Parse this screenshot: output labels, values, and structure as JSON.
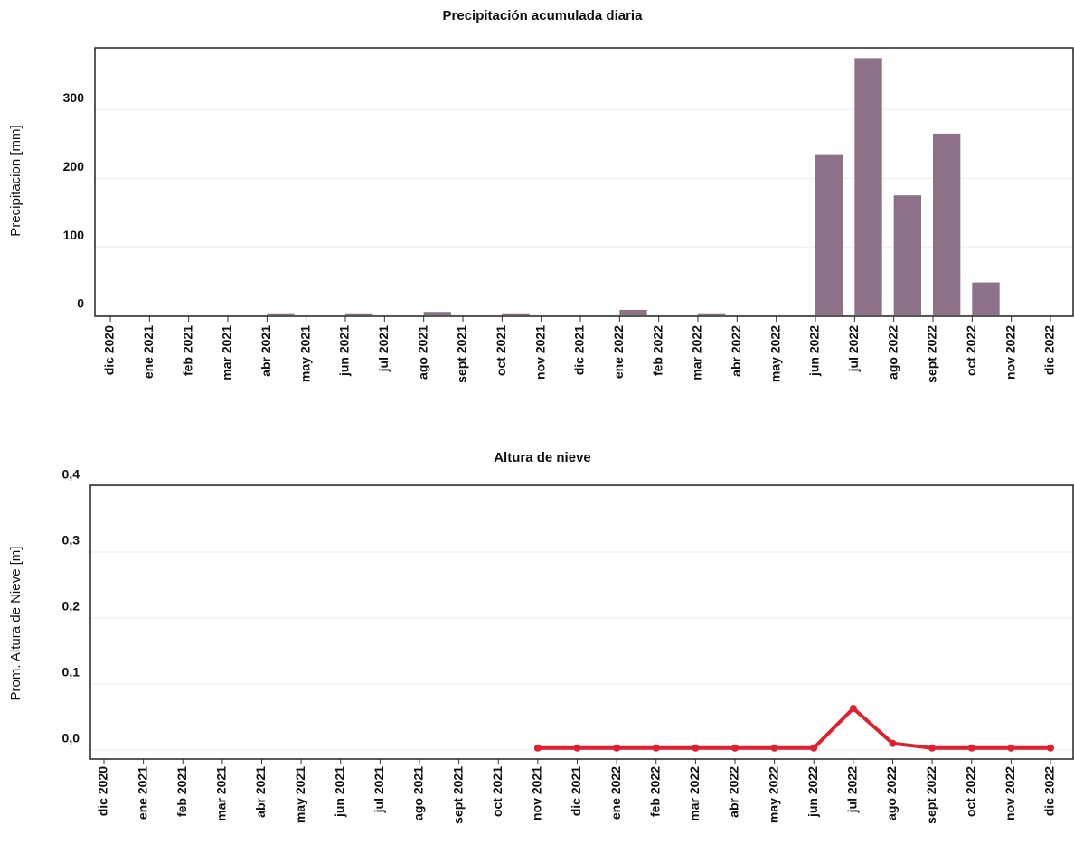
{
  "chart_data": [
    {
      "type": "bar",
      "title": "Precipitación acumulada diaria",
      "y_label": "Precipitacion [mm]",
      "color": "#8c7189",
      "grid": true,
      "ylim": [
        0,
        390
      ],
      "yticks": [
        0,
        100,
        200,
        300
      ],
      "xticks": [
        {
          "value": "2020-12",
          "label": "dic 2020"
        },
        {
          "value": "2021-01",
          "label": "ene 2021"
        },
        {
          "value": "2021-02",
          "label": "feb 2021"
        },
        {
          "value": "2021-03",
          "label": "mar 2021"
        },
        {
          "value": "2021-04",
          "label": "abr 2021"
        },
        {
          "value": "2021-05",
          "label": "may 2021"
        },
        {
          "value": "2021-06",
          "label": "jun 2021"
        },
        {
          "value": "2021-07",
          "label": "jul 2021"
        },
        {
          "value": "2021-08",
          "label": "ago 2021"
        },
        {
          "value": "2021-09",
          "label": "sept 2021"
        },
        {
          "value": "2021-10",
          "label": "oct 2021"
        },
        {
          "value": "2021-11",
          "label": "nov 2021"
        },
        {
          "value": "2021-12",
          "label": "dic 2021"
        },
        {
          "value": "2022-01",
          "label": "ene 2022"
        },
        {
          "value": "2022-02",
          "label": "feb 2022"
        },
        {
          "value": "2022-03",
          "label": "mar 2022"
        },
        {
          "value": "2022-04",
          "label": "abr 2022"
        },
        {
          "value": "2022-05",
          "label": "may 2022"
        },
        {
          "value": "2022-06",
          "label": "jun 2022"
        },
        {
          "value": "2022-07",
          "label": "jul 2022"
        },
        {
          "value": "2022-08",
          "label": "ago 2022"
        },
        {
          "value": "2022-09",
          "label": "sept 2022"
        },
        {
          "value": "2022-10",
          "label": "oct 2022"
        },
        {
          "value": "2022-11",
          "label": "nov 2022"
        },
        {
          "value": "2022-12",
          "label": "dic 2022"
        }
      ],
      "x": [
        "2021-04",
        "2021-06",
        "2021-08",
        "2021-10",
        "2022-01",
        "2022-03",
        "2022-06",
        "2022-07",
        "2022-08",
        "2022-09",
        "2022-10"
      ],
      "values": [
        3,
        3,
        5,
        3,
        8,
        3,
        235,
        375,
        175,
        265,
        48
      ]
    },
    {
      "type": "line",
      "title": "Altura de nieve",
      "y_label": "Prom. Altura de Nieve [m]",
      "color": "#e0202e",
      "grid": true,
      "ylim": [
        0,
        0.4
      ],
      "yticks": [
        {
          "value": 0,
          "label": "0,0"
        },
        {
          "value": 0.1,
          "label": "0,1"
        },
        {
          "value": 0.2,
          "label": "0,2"
        },
        {
          "value": 0.3,
          "label": "0,3"
        },
        {
          "value": 0.4,
          "label": "0,4"
        }
      ],
      "xticks": [
        {
          "value": "2020-12",
          "label": "dic 2020"
        },
        {
          "value": "2021-01",
          "label": "ene 2021"
        },
        {
          "value": "2021-02",
          "label": "feb 2021"
        },
        {
          "value": "2021-03",
          "label": "mar 2021"
        },
        {
          "value": "2021-04",
          "label": "abr 2021"
        },
        {
          "value": "2021-05",
          "label": "may 2021"
        },
        {
          "value": "2021-06",
          "label": "jun 2021"
        },
        {
          "value": "2021-07",
          "label": "jul 2021"
        },
        {
          "value": "2021-08",
          "label": "ago 2021"
        },
        {
          "value": "2021-09",
          "label": "sept 2021"
        },
        {
          "value": "2021-10",
          "label": "oct 2021"
        },
        {
          "value": "2021-11",
          "label": "nov 2021"
        },
        {
          "value": "2021-12",
          "label": "dic 2021"
        },
        {
          "value": "2022-01",
          "label": "ene 2022"
        },
        {
          "value": "2022-02",
          "label": "feb 2022"
        },
        {
          "value": "2022-03",
          "label": "mar 2022"
        },
        {
          "value": "2022-04",
          "label": "abr 2022"
        },
        {
          "value": "2022-05",
          "label": "may 2022"
        },
        {
          "value": "2022-06",
          "label": "jun 2022"
        },
        {
          "value": "2022-07",
          "label": "jul 2022"
        },
        {
          "value": "2022-08",
          "label": "ago 2022"
        },
        {
          "value": "2022-09",
          "label": "sept 2022"
        },
        {
          "value": "2022-10",
          "label": "oct 2022"
        },
        {
          "value": "2022-11",
          "label": "nov 2022"
        },
        {
          "value": "2022-12",
          "label": "dic 2022"
        }
      ],
      "x": [
        "2021-11",
        "2021-12",
        "2022-01",
        "2022-02",
        "2022-03",
        "2022-04",
        "2022-05",
        "2022-06",
        "2022-07",
        "2022-08",
        "2022-09",
        "2022-10",
        "2022-11",
        "2022-12"
      ],
      "values": [
        0.003,
        0.003,
        0.003,
        0.003,
        0.003,
        0.003,
        0.003,
        0.003,
        0.063,
        0.01,
        0.003,
        0.003,
        0.003,
        0.003
      ]
    }
  ]
}
